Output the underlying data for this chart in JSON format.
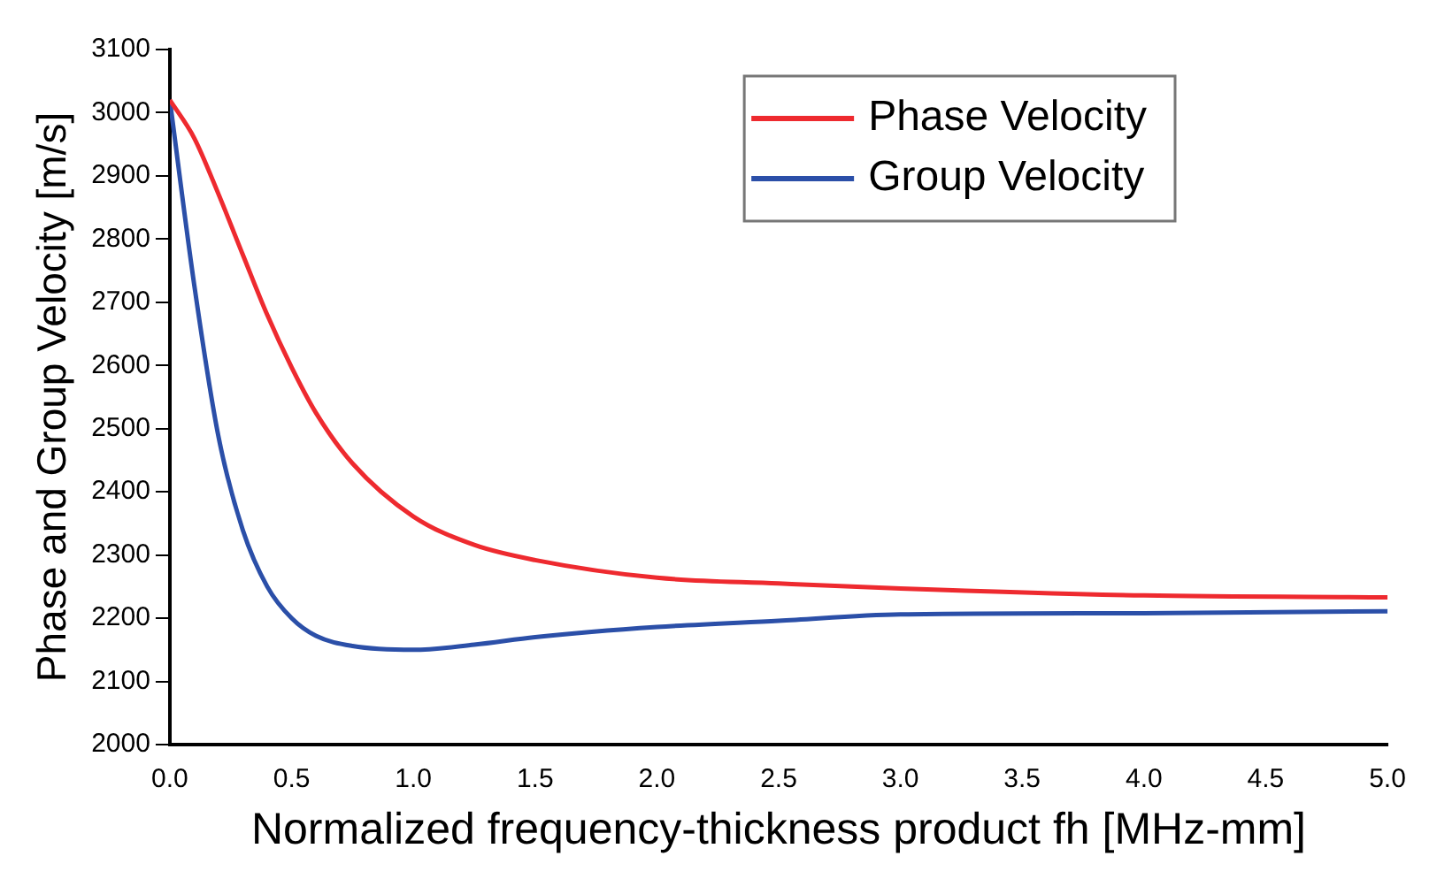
{
  "chart_data": {
    "type": "line",
    "xlabel": "Normalized frequency-thickness product fh [MHz-mm]",
    "ylabel": "Phase and Group Velocity [m/s]",
    "xlim": [
      0,
      5
    ],
    "xticks": [
      {
        "value": 0,
        "label": "0.0"
      },
      {
        "value": 0.5,
        "label": "0.5"
      },
      {
        "value": 1,
        "label": "1.0"
      },
      {
        "value": 1.5,
        "label": "1.5"
      },
      {
        "value": 2,
        "label": "2.0"
      },
      {
        "value": 2.5,
        "label": "2.5"
      },
      {
        "value": 3,
        "label": "3.0"
      },
      {
        "value": 3.5,
        "label": "3.5"
      },
      {
        "value": 4,
        "label": "4.0"
      },
      {
        "value": 4.5,
        "label": "4.5"
      },
      {
        "value": 5,
        "label": "5.0"
      }
    ],
    "ylim": [
      2000,
      3100
    ],
    "yticks": [
      2000,
      2100,
      2200,
      2300,
      2400,
      2500,
      2600,
      2700,
      2800,
      2900,
      3000,
      3100
    ],
    "x": [
      0,
      0.1,
      0.2,
      0.3,
      0.4,
      0.5,
      0.6,
      0.75,
      1,
      1.25,
      1.5,
      2,
      2.5,
      3,
      4,
      5
    ],
    "series": [
      {
        "name": "Phase Velocity",
        "color": "#ee2a2f",
        "values": [
          3020,
          2960,
          2871,
          2775,
          2680,
          2597,
          2525,
          2445,
          2361,
          2316,
          2292,
          2264,
          2255,
          2247,
          2236,
          2233
        ]
      },
      {
        "name": "Group Velocity",
        "color": "#2b4fa8",
        "values": [
          3020,
          2728,
          2487,
          2339,
          2250,
          2200,
          2172,
          2156,
          2150,
          2158,
          2170,
          2186,
          2196,
          2206,
          2208,
          2211
        ]
      }
    ],
    "legend": "top right",
    "grid": false,
    "marker": "none",
    "line_style": "solid"
  }
}
